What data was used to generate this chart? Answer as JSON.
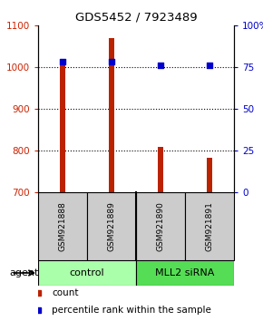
{
  "title": "GDS5452 / 7923489",
  "samples": [
    "GSM921888",
    "GSM921889",
    "GSM921890",
    "GSM921891"
  ],
  "counts": [
    1005,
    1070,
    808,
    783
  ],
  "percentile_ranks": [
    78,
    78,
    76,
    76
  ],
  "ylim_left": [
    700,
    1100
  ],
  "ylim_right": [
    0,
    100
  ],
  "yticks_left": [
    700,
    800,
    900,
    1000,
    1100
  ],
  "yticks_right": [
    0,
    25,
    50,
    75,
    100
  ],
  "ytick_labels_right": [
    "0",
    "25",
    "50",
    "75",
    "100%"
  ],
  "bar_color": "#bb2200",
  "dot_color": "#0000cc",
  "groups": [
    {
      "label": "control",
      "color": "#aaffaa"
    },
    {
      "label": "MLL2 siRNA",
      "color": "#55dd55"
    }
  ],
  "legend_items": [
    {
      "label": "count",
      "color": "#bb2200"
    },
    {
      "label": "percentile rank within the sample",
      "color": "#0000cc"
    }
  ],
  "sample_box_color": "#cccccc",
  "bar_bottom": 700,
  "bar_width": 0.12,
  "dot_size": 18
}
